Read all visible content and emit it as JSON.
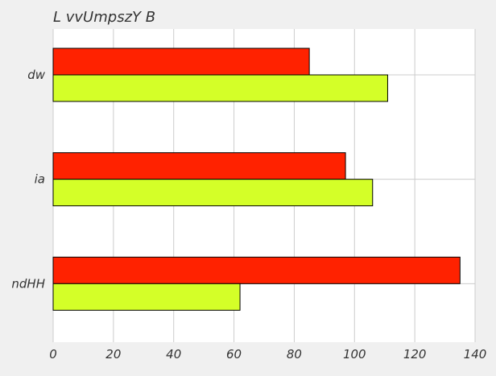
{
  "chart_data": {
    "type": "bar",
    "orientation": "horizontal",
    "title": "L vvUmpszY B",
    "xlabel": "",
    "ylabel": "",
    "categories": [
      "dw",
      "ia",
      "ndHH"
    ],
    "xlim": [
      0,
      140
    ],
    "xticks": [
      0,
      20,
      40,
      60,
      80,
      100,
      120,
      140
    ],
    "grid": true,
    "series": [
      {
        "color": "#ff2200",
        "values": [
          85,
          97,
          135
        ]
      },
      {
        "color": "#d4ff28",
        "values": [
          111,
          106,
          62
        ]
      }
    ]
  },
  "colors": {
    "background": "#f0f0f0",
    "plot_background": "#ffffff",
    "grid": "#cccccc",
    "bar_stroke": "#000000"
  }
}
